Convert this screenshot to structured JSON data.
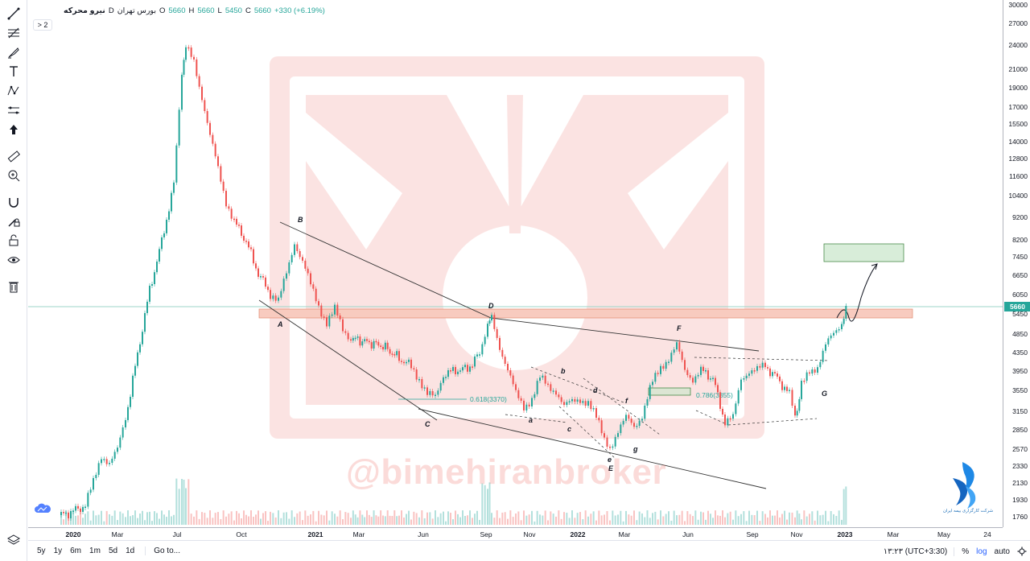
{
  "legend": {
    "symbol": "نیرو محرکه",
    "exchange": "بورس تهران",
    "interval": "D",
    "open_label": "O",
    "open": "5660",
    "high_label": "H",
    "high": "5660",
    "low_label": "L",
    "low": "5450",
    "close_label": "C",
    "close": "5660",
    "change": "+330 (+6.19%)",
    "indicators_toggle": "> 2"
  },
  "price_axis": {
    "ticks": [
      "30000",
      "27000",
      "24000",
      "21000",
      "19000",
      "17000",
      "15500",
      "14000",
      "12800",
      "11600",
      "10400",
      "9200",
      "8200",
      "7450",
      "6650",
      "6050",
      "5450",
      "4850",
      "4350",
      "3950",
      "3550",
      "3150",
      "2850",
      "2570",
      "2330",
      "2130",
      "1930",
      "1760"
    ],
    "last_price": "5660"
  },
  "time_axis": {
    "ticks": [
      {
        "label": "2020",
        "bold": true
      },
      {
        "label": "Mar",
        "bold": false
      },
      {
        "label": "Jul",
        "bold": false
      },
      {
        "label": "Oct",
        "bold": false
      },
      {
        "label": "2021",
        "bold": true
      },
      {
        "label": "Mar",
        "bold": false
      },
      {
        "label": "Jun",
        "bold": false
      },
      {
        "label": "Sep",
        "bold": false
      },
      {
        "label": "Nov",
        "bold": false
      },
      {
        "label": "2022",
        "bold": true
      },
      {
        "label": "Mar",
        "bold": false
      },
      {
        "label": "Jun",
        "bold": false
      },
      {
        "label": "Sep",
        "bold": false
      },
      {
        "label": "Nov",
        "bold": false
      },
      {
        "label": "2023",
        "bold": true
      },
      {
        "label": "Mar",
        "bold": false
      },
      {
        "label": "May",
        "bold": false
      },
      {
        "label": "24",
        "bold": false
      }
    ]
  },
  "bottom_bar": {
    "ranges": [
      "5y",
      "1y",
      "6m",
      "1m",
      "5d",
      "1d"
    ],
    "goto": "Go to...",
    "timezone": "۱۳:۲۳ (UTC+3:30)",
    "percent": "%",
    "log": "log",
    "auto": "auto"
  },
  "annotations": {
    "wave_labels": [
      "A",
      "B",
      "C",
      "D",
      "a",
      "b",
      "c",
      "d",
      "e",
      "E",
      "f",
      "g",
      "F",
      "G"
    ],
    "fib_1": "0.618(3370)",
    "fib_2": "0.786(3355)"
  },
  "watermark": "@bimehiranbroker",
  "brand_caption": "شرکت کارگزاری بیمه ایران",
  "colors": {
    "up": "#26a69a",
    "down": "#ef5350",
    "watermark": "#eb5a50",
    "target_box": "#c8e6c9",
    "resistance_zone": "#f8cbbf"
  },
  "icons": [
    "trend-line-icon",
    "fib-icon",
    "brush-icon",
    "text-icon",
    "pattern-icon",
    "prediction-icon",
    "arrow-icon",
    "ruler-icon",
    "zoom-icon",
    "magnet-icon",
    "lock-drawing-icon",
    "unlock-icon",
    "eye-icon",
    "trash-icon",
    "layers-icon",
    "settings-icon"
  ]
}
